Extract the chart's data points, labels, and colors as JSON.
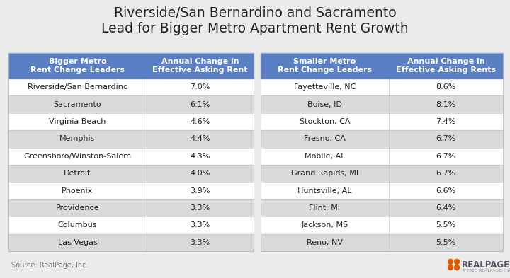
{
  "title_line1": "Riverside/San Bernardino and Sacramento",
  "title_line2": "Lead for Bigger Metro Apartment Rent Growth",
  "bg_color": "#ebebeb",
  "header_color": "#5b7fc4",
  "header_text_color": "#ffffff",
  "row_colors": [
    "#ffffff",
    "#d9d9d9"
  ],
  "bigger_metro_header_col1": "Bigger Metro\nRent Change Leaders",
  "bigger_metro_header_col2": "Annual Change in\nEffective Asking Rent",
  "smaller_metro_header_col1": "Smaller Metro\nRent Change Leaders",
  "smaller_metro_header_col2": "Annual Change in\nEffective Asking Rents",
  "bigger_metro_cities": [
    "Riverside/San Bernardino",
    "Sacramento",
    "Virginia Beach",
    "Memphis",
    "Greensboro/Winston-Salem",
    "Detroit",
    "Phoenix",
    "Providence",
    "Columbus",
    "Las Vegas"
  ],
  "bigger_metro_values": [
    "7.0%",
    "6.1%",
    "4.6%",
    "4.4%",
    "4.3%",
    "4.0%",
    "3.9%",
    "3.3%",
    "3.3%",
    "3.3%"
  ],
  "smaller_metro_cities": [
    "Fayetteville, NC",
    "Boise, ID",
    "Stockton, CA",
    "Fresno, CA",
    "Mobile, AL",
    "Grand Rapids, MI",
    "Huntsville, AL",
    "Flint, MI",
    "Jackson, MS",
    "Reno, NV"
  ],
  "smaller_metro_values": [
    "8.6%",
    "8.1%",
    "7.4%",
    "6.7%",
    "6.7%",
    "6.7%",
    "6.6%",
    "6.4%",
    "5.5%",
    "5.5%"
  ],
  "source_text": "Source: RealPage, Inc.",
  "realpage_text": "••REALPAGE",
  "title_fontsize": 13.5,
  "header_fontsize": 8,
  "cell_fontsize": 8,
  "source_fontsize": 7
}
